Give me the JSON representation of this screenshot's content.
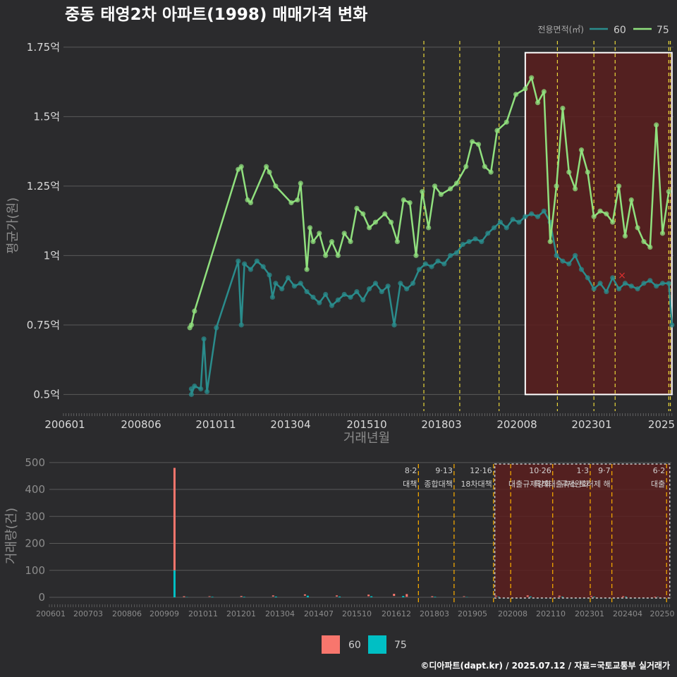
{
  "title": "중동 태영2차 아파트(1998) 매매가격 변화",
  "footer": "©디아파트(dapt.kr) / 2025.07.12 / 자료=국토교통부 실거래가",
  "colors": {
    "background": "#2b2b2d",
    "grid": "#5a5a5a",
    "series_60_line": "#2a8c8c",
    "series_75_line": "#90e07e",
    "volume_60": "#f8766d",
    "volume_75": "#00bfc4",
    "event_line_top": "#e8d63a",
    "event_line_bottom": "#f0a500",
    "highlight_fill": "#5a1e1e",
    "highlight_border": "#ffffff"
  },
  "chart_data": [
    {
      "type": "line",
      "xlabel": "거래년월",
      "ylabel": "평균가(원)",
      "x_tick_labels": [
        "200601",
        "200806",
        "201011",
        "201304",
        "201510",
        "201803",
        "202008",
        "202301",
        "2025"
      ],
      "y_tick_labels": [
        "0.5억",
        "0.75억",
        "1억",
        "1.25억",
        "1.5억",
        "1.75억"
      ],
      "y_ticks": [
        0.5,
        0.75,
        1.0,
        1.25,
        1.5,
        1.75
      ],
      "ylim": [
        0.44,
        1.78
      ],
      "xlim": [
        2006.0,
        2025.55
      ],
      "legend_title": "전용면적(㎡)",
      "legend_position": "top-right",
      "highlight_region": {
        "x_start": 2020.8,
        "x_end": 2025.5,
        "y_start": 0.5,
        "y_end": 1.73
      },
      "event_lines_x": [
        2017.55,
        2018.7,
        2019.96,
        2021.83,
        2023.0,
        2023.68,
        2025.4,
        2025.45
      ],
      "marker": {
        "x": 2023.9,
        "y": 0.93,
        "symbol": "×"
      },
      "series": [
        {
          "name": "60",
          "points": [
            [
              2010.1,
              0.52
            ],
            [
              2010.1,
              0.5
            ],
            [
              2010.2,
              0.53
            ],
            [
              2010.4,
              0.52
            ],
            [
              2010.5,
              0.7
            ],
            [
              2010.6,
              0.51
            ],
            [
              2010.9,
              0.74
            ],
            [
              2011.6,
              0.98
            ],
            [
              2011.7,
              0.75
            ],
            [
              2011.8,
              0.97
            ],
            [
              2012.0,
              0.95
            ],
            [
              2012.2,
              0.98
            ],
            [
              2012.4,
              0.96
            ],
            [
              2012.6,
              0.93
            ],
            [
              2012.7,
              0.85
            ],
            [
              2012.8,
              0.9
            ],
            [
              2013.0,
              0.88
            ],
            [
              2013.2,
              0.92
            ],
            [
              2013.4,
              0.89
            ],
            [
              2013.6,
              0.9
            ],
            [
              2013.8,
              0.87
            ],
            [
              2014.0,
              0.85
            ],
            [
              2014.2,
              0.83
            ],
            [
              2014.4,
              0.86
            ],
            [
              2014.6,
              0.82
            ],
            [
              2014.8,
              0.84
            ],
            [
              2015.0,
              0.86
            ],
            [
              2015.2,
              0.85
            ],
            [
              2015.4,
              0.87
            ],
            [
              2015.6,
              0.84
            ],
            [
              2015.8,
              0.88
            ],
            [
              2016.0,
              0.9
            ],
            [
              2016.2,
              0.87
            ],
            [
              2016.4,
              0.89
            ],
            [
              2016.6,
              0.75
            ],
            [
              2016.8,
              0.9
            ],
            [
              2017.0,
              0.88
            ],
            [
              2017.2,
              0.9
            ],
            [
              2017.4,
              0.95
            ],
            [
              2017.6,
              0.97
            ],
            [
              2017.8,
              0.96
            ],
            [
              2018.0,
              0.98
            ],
            [
              2018.2,
              0.97
            ],
            [
              2018.4,
              1.0
            ],
            [
              2018.6,
              1.01
            ],
            [
              2018.8,
              1.04
            ],
            [
              2019.0,
              1.05
            ],
            [
              2019.2,
              1.06
            ],
            [
              2019.4,
              1.05
            ],
            [
              2019.6,
              1.08
            ],
            [
              2019.8,
              1.1
            ],
            [
              2020.0,
              1.12
            ],
            [
              2020.2,
              1.1
            ],
            [
              2020.4,
              1.13
            ],
            [
              2020.6,
              1.12
            ],
            [
              2020.8,
              1.14
            ],
            [
              2021.0,
              1.15
            ],
            [
              2021.2,
              1.14
            ],
            [
              2021.4,
              1.16
            ],
            [
              2021.6,
              1.12
            ],
            [
              2021.8,
              1.0
            ],
            [
              2022.0,
              0.98
            ],
            [
              2022.2,
              0.97
            ],
            [
              2022.4,
              1.0
            ],
            [
              2022.6,
              0.95
            ],
            [
              2022.8,
              0.92
            ],
            [
              2023.0,
              0.88
            ],
            [
              2023.2,
              0.9
            ],
            [
              2023.4,
              0.87
            ],
            [
              2023.6,
              0.92
            ],
            [
              2023.8,
              0.88
            ],
            [
              2024.0,
              0.9
            ],
            [
              2024.2,
              0.89
            ],
            [
              2024.4,
              0.88
            ],
            [
              2024.6,
              0.9
            ],
            [
              2024.8,
              0.91
            ],
            [
              2025.0,
              0.89
            ],
            [
              2025.2,
              0.9
            ],
            [
              2025.4,
              0.9
            ],
            [
              2025.5,
              0.75
            ]
          ]
        },
        {
          "name": "75",
          "points": [
            [
              2010.05,
              0.74
            ],
            [
              2010.1,
              0.75
            ],
            [
              2010.2,
              0.8
            ],
            [
              2011.6,
              1.31
            ],
            [
              2011.7,
              1.32
            ],
            [
              2011.9,
              1.2
            ],
            [
              2012.0,
              1.19
            ],
            [
              2012.5,
              1.32
            ],
            [
              2012.6,
              1.3
            ],
            [
              2012.8,
              1.25
            ],
            [
              2013.3,
              1.19
            ],
            [
              2013.5,
              1.2
            ],
            [
              2013.6,
              1.26
            ],
            [
              2013.8,
              0.95
            ],
            [
              2013.9,
              1.1
            ],
            [
              2014.0,
              1.05
            ],
            [
              2014.2,
              1.08
            ],
            [
              2014.4,
              1.0
            ],
            [
              2014.6,
              1.05
            ],
            [
              2014.8,
              1.0
            ],
            [
              2015.0,
              1.08
            ],
            [
              2015.2,
              1.05
            ],
            [
              2015.4,
              1.17
            ],
            [
              2015.6,
              1.15
            ],
            [
              2015.8,
              1.1
            ],
            [
              2016.0,
              1.12
            ],
            [
              2016.3,
              1.15
            ],
            [
              2016.5,
              1.12
            ],
            [
              2016.7,
              1.05
            ],
            [
              2016.9,
              1.2
            ],
            [
              2017.1,
              1.19
            ],
            [
              2017.3,
              1.0
            ],
            [
              2017.5,
              1.23
            ],
            [
              2017.7,
              1.1
            ],
            [
              2017.9,
              1.25
            ],
            [
              2018.1,
              1.22
            ],
            [
              2018.4,
              1.24
            ],
            [
              2018.6,
              1.26
            ],
            [
              2018.9,
              1.32
            ],
            [
              2019.1,
              1.41
            ],
            [
              2019.3,
              1.4
            ],
            [
              2019.5,
              1.32
            ],
            [
              2019.7,
              1.3
            ],
            [
              2019.9,
              1.45
            ],
            [
              2020.2,
              1.48
            ],
            [
              2020.5,
              1.58
            ],
            [
              2020.8,
              1.6
            ],
            [
              2021.0,
              1.64
            ],
            [
              2021.2,
              1.55
            ],
            [
              2021.4,
              1.59
            ],
            [
              2021.6,
              1.05
            ],
            [
              2021.8,
              1.25
            ],
            [
              2022.0,
              1.53
            ],
            [
              2022.2,
              1.3
            ],
            [
              2022.4,
              1.24
            ],
            [
              2022.6,
              1.38
            ],
            [
              2022.8,
              1.3
            ],
            [
              2023.0,
              1.14
            ],
            [
              2023.2,
              1.16
            ],
            [
              2023.4,
              1.15
            ],
            [
              2023.6,
              1.12
            ],
            [
              2023.8,
              1.25
            ],
            [
              2024.0,
              1.07
            ],
            [
              2024.2,
              1.2
            ],
            [
              2024.4,
              1.1
            ],
            [
              2024.6,
              1.05
            ],
            [
              2024.8,
              1.03
            ],
            [
              2025.0,
              1.47
            ],
            [
              2025.2,
              1.08
            ],
            [
              2025.4,
              1.23
            ]
          ]
        }
      ]
    },
    {
      "type": "bar",
      "xlabel": "",
      "ylabel": "거래량(건)",
      "x_tick_labels": [
        "200601",
        "200703",
        "200806",
        "200909",
        "201011",
        "201201",
        "201304",
        "201407",
        "201510",
        "201612",
        "201803",
        "201905",
        "202008",
        "202110",
        "202301",
        "202404",
        "20250"
      ],
      "y_ticks": [
        0,
        100,
        200,
        300,
        400,
        500
      ],
      "ylim": [
        0,
        510
      ],
      "legend_position": "bottom",
      "highlight_region": {
        "x_start": 2020.0,
        "x_end": 2025.5
      },
      "spike": {
        "x": 2009.9,
        "series_60": 380,
        "series_75": 100
      },
      "events": [
        {
          "x": 2017.6,
          "date": "8·2",
          "label": "대책"
        },
        {
          "x": 2018.72,
          "date": "9·13",
          "label": "종합대책"
        },
        {
          "x": 2019.96,
          "date": "12·16",
          "label": "18차대책"
        },
        {
          "x": 2020.5,
          "date": "",
          "label": ""
        },
        {
          "x": 2021.82,
          "date": "10·26",
          "label": "대출규제강화"
        },
        {
          "x": 2023.0,
          "date": "1·3",
          "label": "규제완화"
        },
        {
          "x": 2023.68,
          "date": "9·7",
          "label": "특례대출축소 토허제 해"
        },
        {
          "x": 2025.4,
          "date": "6·2",
          "label": "대출"
        }
      ],
      "series": [
        {
          "name": "60",
          "values": [
            [
              2010.2,
              3
            ],
            [
              2011.0,
              2
            ],
            [
              2012.0,
              3
            ],
            [
              2013.0,
              4
            ],
            [
              2014.0,
              5
            ],
            [
              2015.0,
              4
            ],
            [
              2016.0,
              6
            ],
            [
              2016.8,
              8
            ],
            [
              2017.2,
              10
            ],
            [
              2018.0,
              3
            ],
            [
              2019.0,
              2
            ],
            [
              2020.0,
              3
            ],
            [
              2021.0,
              5
            ],
            [
              2022.0,
              4
            ],
            [
              2023.0,
              3
            ],
            [
              2024.0,
              3
            ],
            [
              2025.0,
              2
            ]
          ]
        },
        {
          "name": "75",
          "values": [
            [
              2010.2,
              1
            ],
            [
              2011.0,
              2
            ],
            [
              2012.0,
              2
            ],
            [
              2013.0,
              3
            ],
            [
              2014.0,
              6
            ],
            [
              2015.0,
              3
            ],
            [
              2016.0,
              4
            ],
            [
              2017.0,
              5
            ],
            [
              2018.0,
              2
            ],
            [
              2019.0,
              1
            ],
            [
              2020.0,
              2
            ],
            [
              2021.0,
              3
            ],
            [
              2022.0,
              2
            ],
            [
              2023.0,
              2
            ],
            [
              2024.0,
              2
            ],
            [
              2025.0,
              1
            ]
          ]
        }
      ]
    }
  ]
}
